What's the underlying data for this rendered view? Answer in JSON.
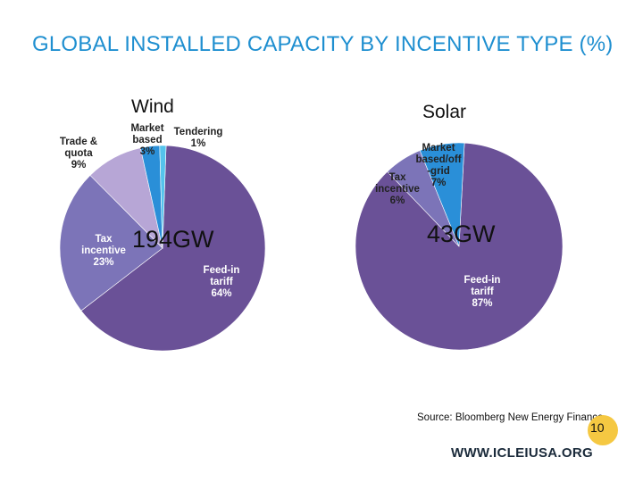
{
  "slide": {
    "title": "GLOBAL INSTALLED CAPACITY BY INCENTIVE TYPE (%)",
    "source": "Source: Bloomberg New Energy Finance",
    "url": "WWW.ICLEIUSA.ORG",
    "page_number": "10"
  },
  "chart_data": [
    {
      "type": "pie",
      "title": "Wind",
      "total_label": "194GW",
      "slices": [
        {
          "name": "Feed-in tariff",
          "value": 64,
          "label_lines": [
            "Feed-in",
            "tariff",
            "64%"
          ],
          "color": "#6a5197",
          "light": true
        },
        {
          "name": "Tax incentive",
          "value": 23,
          "label_lines": [
            "Tax",
            "incentive",
            "23%"
          ],
          "color": "#7c74b8",
          "light": true
        },
        {
          "name": "Trade & quota",
          "value": 9,
          "label_lines": [
            "Trade &",
            "quota",
            "9%"
          ],
          "color": "#b7a6d6",
          "light": false
        },
        {
          "name": "Market based",
          "value": 3,
          "label_lines": [
            "Market",
            "based",
            "3%"
          ],
          "color": "#2a8fd8",
          "light": false
        },
        {
          "name": "Tendering",
          "value": 1,
          "label_lines": [
            "Tendering",
            "1%"
          ],
          "color": "#54c3ec",
          "light": false
        }
      ]
    },
    {
      "type": "pie",
      "title": "Solar",
      "total_label": "43GW",
      "slices": [
        {
          "name": "Feed-in tariff",
          "value": 87,
          "label_lines": [
            "Feed-in",
            "tariff",
            "87%"
          ],
          "color": "#6a5197",
          "light": true
        },
        {
          "name": "Tax incentive",
          "value": 6,
          "label_lines": [
            "Tax",
            "incentive",
            "6%"
          ],
          "color": "#7c74b8",
          "light": false
        },
        {
          "name": "Market based/off-grid",
          "value": 7,
          "label_lines": [
            "Market",
            "based/off",
            "-grid",
            "7%"
          ],
          "color": "#2a8fd8",
          "light": false
        }
      ]
    }
  ]
}
